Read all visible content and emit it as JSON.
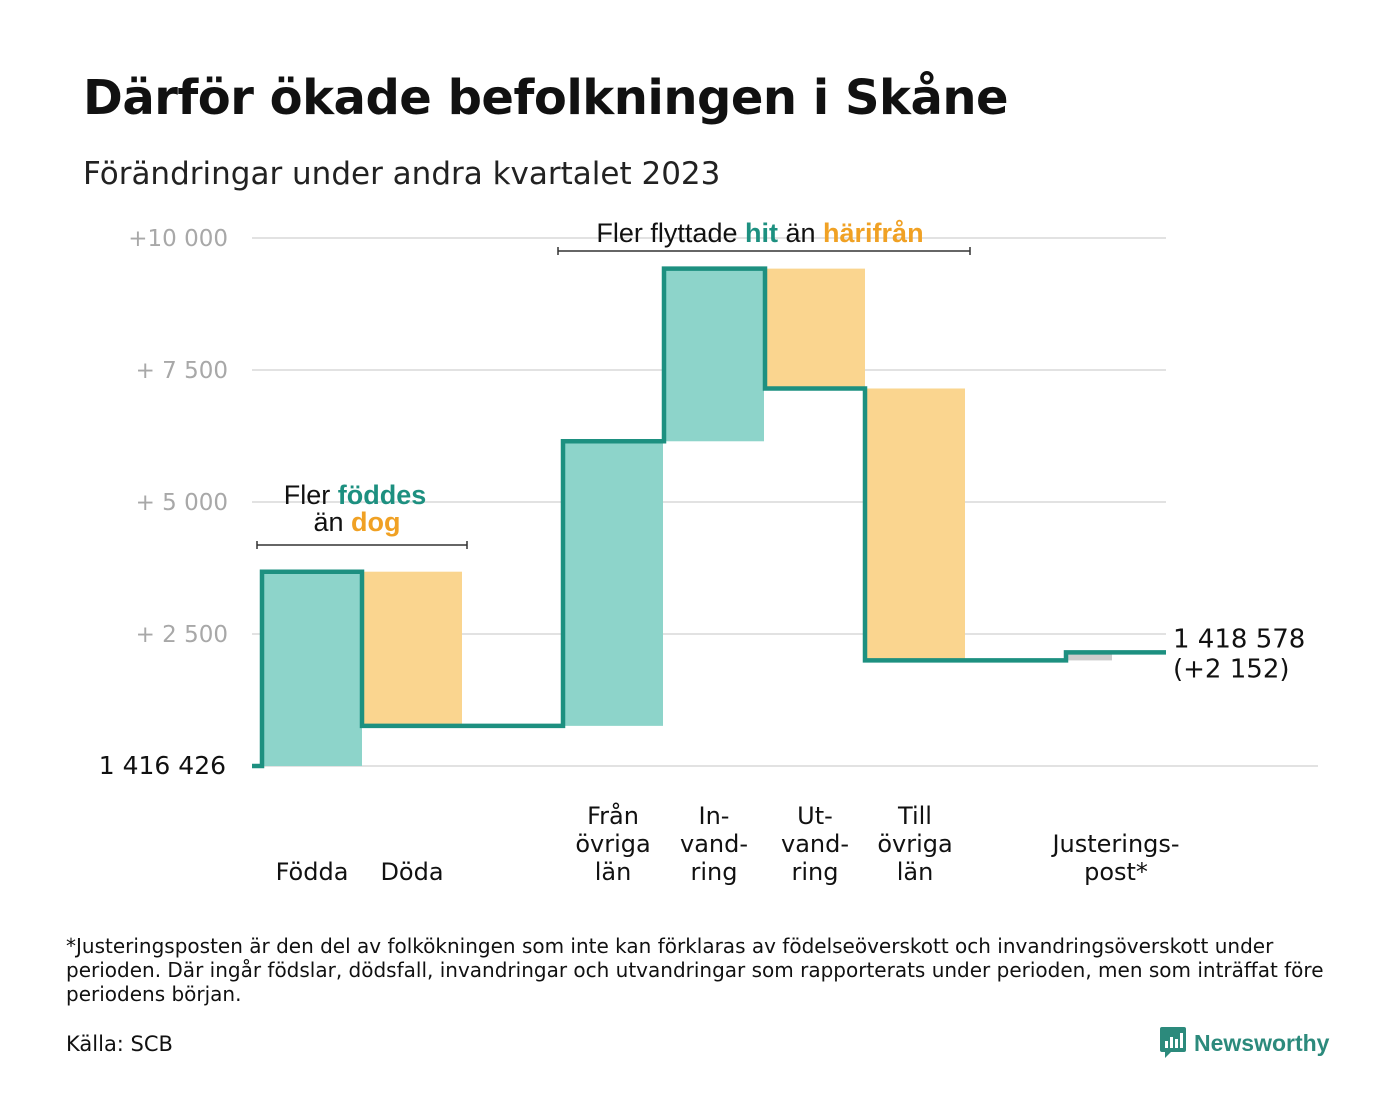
{
  "header": {
    "title": "Därför ökade befolkningen i Skåne",
    "subtitle": "Förändringar under andra kvartalet 2023"
  },
  "chart_data": {
    "type": "waterfall",
    "base_label": "1  416   426",
    "ylim": [
      0,
      10000
    ],
    "yticks": [
      {
        "value": 2500,
        "label": "+  2  500"
      },
      {
        "value": 5000,
        "label": "+  5  000"
      },
      {
        "value": 7500,
        "label": "+  7  500"
      },
      {
        "value": 10000,
        "label": "+10   000"
      }
    ],
    "grid": true,
    "steps": [
      {
        "key": "fodda",
        "label": [
          "Födda"
        ],
        "start": 0,
        "end": 3680,
        "kind": "increase"
      },
      {
        "key": "doda",
        "label": [
          "Döda"
        ],
        "start": 3680,
        "end": 760,
        "kind": "decrease"
      },
      {
        "key": "fran-ovriga-lan",
        "label": [
          "Från",
          "övriga",
          "län"
        ],
        "start": 760,
        "end": 6150,
        "kind": "increase"
      },
      {
        "key": "invandring",
        "label": [
          "In-",
          "vand-",
          "ring"
        ],
        "start": 6150,
        "end": 9420,
        "kind": "increase"
      },
      {
        "key": "utvandring",
        "label": [
          "Ut-",
          "vand-",
          "ring"
        ],
        "start": 9420,
        "end": 7150,
        "kind": "decrease"
      },
      {
        "key": "till-ovriga-lan",
        "label": [
          "Till",
          "övriga",
          "län"
        ],
        "start": 7150,
        "end": 2000,
        "kind": "decrease"
      },
      {
        "key": "justeringspost",
        "label": [
          "Justerings-",
          "post*"
        ],
        "start": 2000,
        "end": 2152,
        "kind": "adjustment"
      }
    ],
    "end_label": "1 418 578",
    "end_change_label": "(+2 152)",
    "annotations": [
      {
        "key": "births",
        "parts": [
          {
            "text": "Fler ",
            "role": "plain"
          },
          {
            "text": "föddes",
            "role": "increase"
          },
          {
            "text": "än ",
            "role": "plain"
          },
          {
            "text": "dog",
            "role": "decrease"
          }
        ]
      },
      {
        "key": "migration",
        "parts": [
          {
            "text": "Fler flyttade ",
            "role": "plain"
          },
          {
            "text": "hit",
            "role": "increase"
          },
          {
            "text": " än ",
            "role": "plain"
          },
          {
            "text": "härifrån",
            "role": "decrease"
          }
        ]
      }
    ],
    "colors": {
      "increase_fill": "#8dd4ca",
      "decrease_fill": "#fad58f",
      "adjustment_fill": "#cccccc",
      "line": "#1d9080",
      "increase_text": "#1d9080",
      "decrease_text": "#f0a124",
      "grid": "#e2e2e2",
      "tick_text": "#a8a8a8"
    }
  },
  "footer": {
    "footnote": "*Justeringsposten är den del av folkökningen som inte kan förklaras av födelseöverskott och invandringsöverskott under perioden. Där ingår födslar, dödsfall, invandringar och utvandringar som rapporterats under perioden, men som inträffat före periodens början.",
    "source": "Källa: SCB",
    "logo_text": "Newsworthy",
    "logo_icon": "bar-chart-speech-icon"
  }
}
